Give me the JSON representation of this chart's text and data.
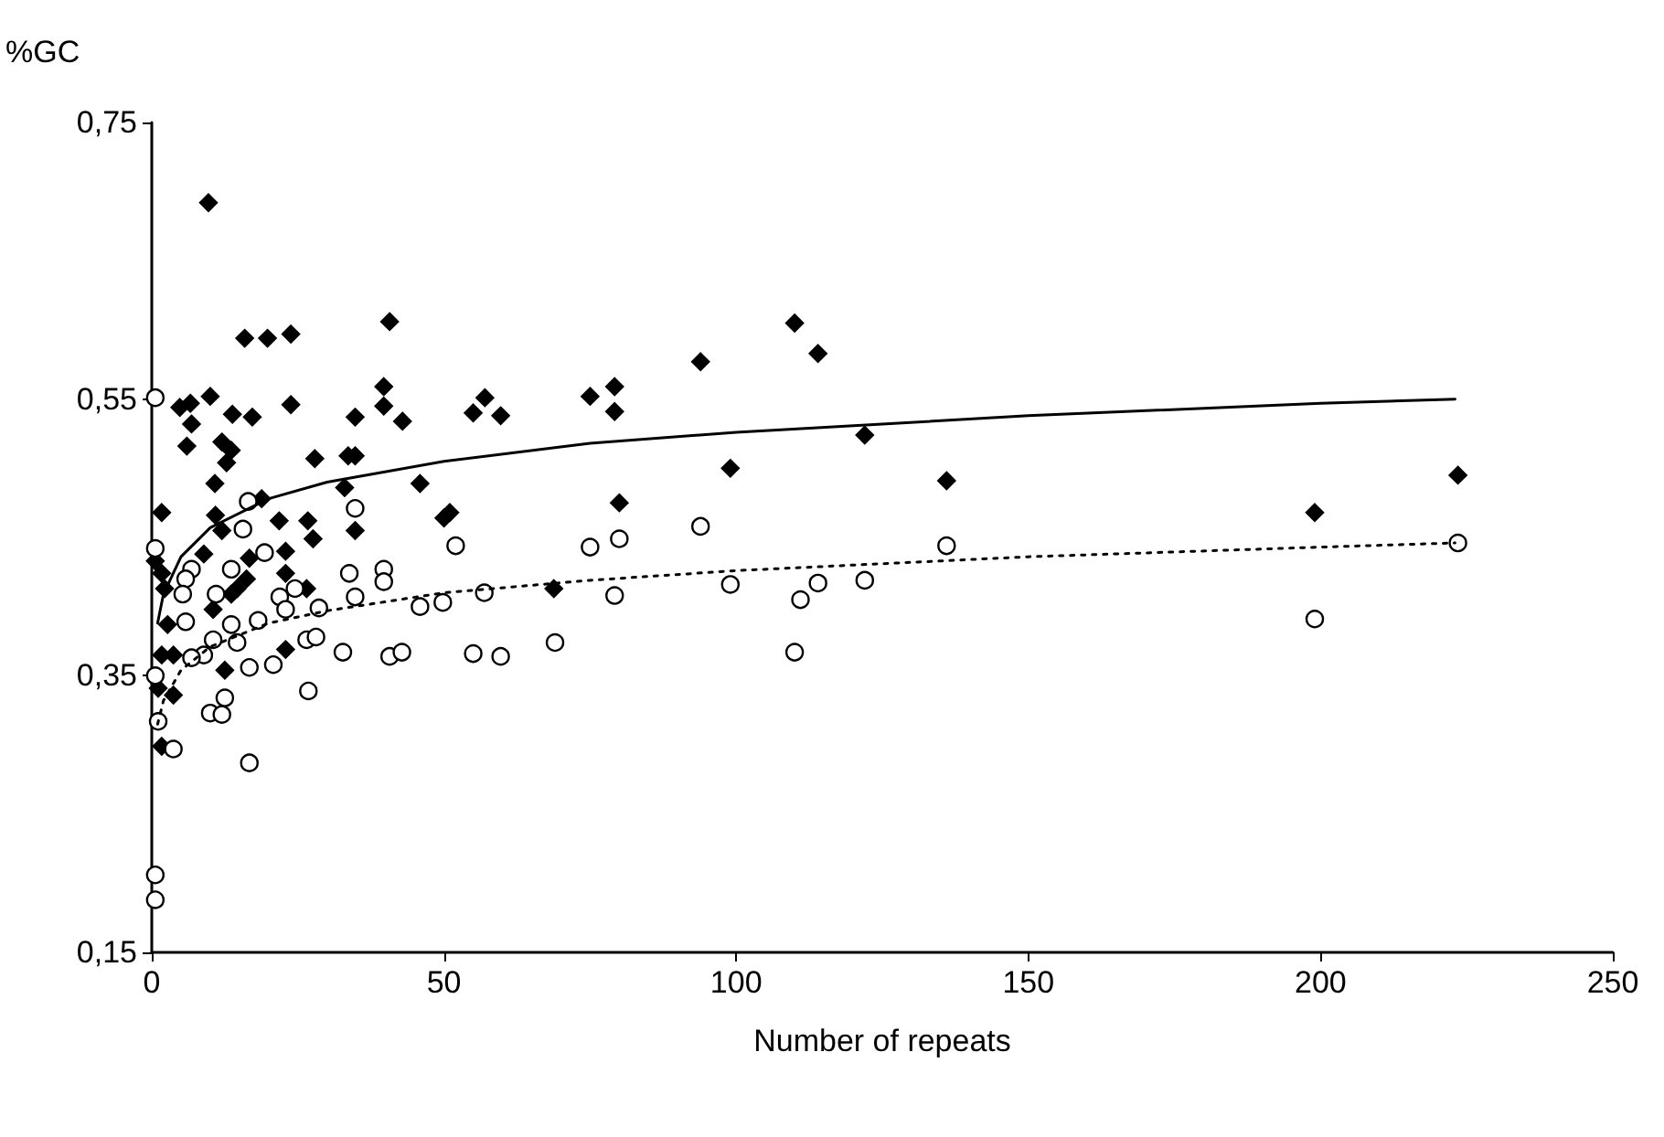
{
  "chart_data": {
    "type": "scatter",
    "ylabel": "%GC",
    "xlabel": "Number of repeats",
    "xlim": [
      0,
      250
    ],
    "xticks": [
      0,
      50,
      100,
      150,
      200,
      250
    ],
    "ylim": [
      0.15,
      0.75
    ],
    "yticks": [
      {
        "value": 0.15,
        "label": "0,15"
      },
      {
        "value": 0.35,
        "label": "0,35"
      },
      {
        "value": 0.55,
        "label": "0,55"
      },
      {
        "value": 0.75,
        "label": "0,75"
      }
    ],
    "grid": false,
    "series": [
      {
        "marker": "diamond",
        "color": "#000000",
        "x": [
          9.7,
          15.9,
          19.8,
          23.8,
          40.7,
          110,
          114,
          4.8,
          6.6,
          10,
          6.8,
          13.8,
          17.2,
          23.8,
          34.8,
          39.7,
          39.7,
          42.9,
          55,
          57,
          59.7,
          75,
          79.2,
          79.2,
          93.9,
          6,
          12,
          13.6,
          12.8,
          10.8,
          27.9,
          33.6,
          18.8,
          33,
          1.7,
          34.8,
          45.9,
          50,
          51,
          34.8,
          80,
          68.8,
          122,
          99,
          136,
          199,
          223.5,
          10.9,
          21.8,
          26.7,
          27.6,
          12,
          8.9,
          0.6,
          1.7,
          2.2,
          16.7,
          16.2,
          14.6,
          13.6,
          22.9,
          22.9,
          26.5,
          2.7,
          1.7,
          3.7,
          1.1,
          1.7,
          3.7,
          12.5,
          22.9,
          10.5
        ],
        "values": [
          0.692,
          0.594,
          0.594,
          0.597,
          0.606,
          0.605,
          0.583,
          0.544,
          0.547,
          0.552,
          0.532,
          0.539,
          0.537,
          0.546,
          0.537,
          0.559,
          0.545,
          0.534,
          0.54,
          0.551,
          0.538,
          0.552,
          0.559,
          0.541,
          0.577,
          0.516,
          0.519,
          0.513,
          0.504,
          0.489,
          0.507,
          0.509,
          0.478,
          0.486,
          0.468,
          0.509,
          0.489,
          0.464,
          0.468,
          0.455,
          0.475,
          0.413,
          0.524,
          0.5,
          0.491,
          0.468,
          0.495,
          0.466,
          0.462,
          0.462,
          0.449,
          0.455,
          0.438,
          0.433,
          0.424,
          0.413,
          0.435,
          0.42,
          0.413,
          0.409,
          0.44,
          0.424,
          0.413,
          0.387,
          0.365,
          0.365,
          0.341,
          0.299,
          0.336,
          0.354,
          0.369,
          0.398
        ]
      },
      {
        "marker": "circle",
        "color": "#ffffff",
        "x": [
          0.6,
          16.5,
          34.8,
          52,
          39.7,
          39.7,
          34.8,
          45.9,
          49.8,
          56.9,
          75,
          80,
          79.2,
          93.9,
          40.7,
          42.8,
          55,
          59.7,
          69,
          99,
          110,
          111,
          114,
          122,
          136,
          199,
          223.5,
          15.6,
          19.3,
          6.8,
          5.8,
          5.3,
          11,
          13.6,
          21.9,
          24.5,
          22.9,
          28.6,
          33.8,
          13.6,
          18.2,
          5.8,
          10.5,
          8.9,
          6.8,
          14.6,
          16.7,
          20.8,
          26.5,
          28.1,
          32.7,
          26.8,
          12.5,
          10,
          12,
          1.1,
          3.7,
          16.7,
          0.6,
          0.6,
          0.6,
          0.6
        ],
        "values": [
          0.551,
          0.476,
          0.471,
          0.444,
          0.427,
          0.418,
          0.407,
          0.4,
          0.403,
          0.41,
          0.443,
          0.449,
          0.408,
          0.458,
          0.364,
          0.367,
          0.366,
          0.364,
          0.374,
          0.416,
          0.367,
          0.405,
          0.417,
          0.419,
          0.444,
          0.391,
          0.446,
          0.456,
          0.439,
          0.427,
          0.42,
          0.409,
          0.409,
          0.427,
          0.407,
          0.413,
          0.398,
          0.399,
          0.424,
          0.387,
          0.39,
          0.389,
          0.376,
          0.365,
          0.363,
          0.374,
          0.356,
          0.358,
          0.376,
          0.378,
          0.367,
          0.339,
          0.334,
          0.323,
          0.322,
          0.317,
          0.297,
          0.287,
          0.35,
          0.442,
          0.206,
          0.188
        ]
      },
      {
        "type": "line",
        "marker": "none",
        "line_style": "solid",
        "color": "#000000",
        "x": [
          1,
          2,
          5,
          10,
          20,
          30,
          50,
          75,
          100,
          150,
          200,
          223
        ],
        "values": [
          0.388,
          0.409,
          0.436,
          0.457,
          0.478,
          0.49,
          0.505,
          0.518,
          0.526,
          0.538,
          0.547,
          0.55
        ]
      },
      {
        "type": "line",
        "marker": "none",
        "line_style": "dotted",
        "color": "#000000",
        "x": [
          1,
          2,
          5,
          10,
          20,
          30,
          50,
          75,
          100,
          150,
          200,
          223
        ],
        "values": [
          0.315,
          0.332,
          0.354,
          0.371,
          0.388,
          0.397,
          0.41,
          0.419,
          0.426,
          0.436,
          0.443,
          0.446
        ]
      }
    ]
  }
}
